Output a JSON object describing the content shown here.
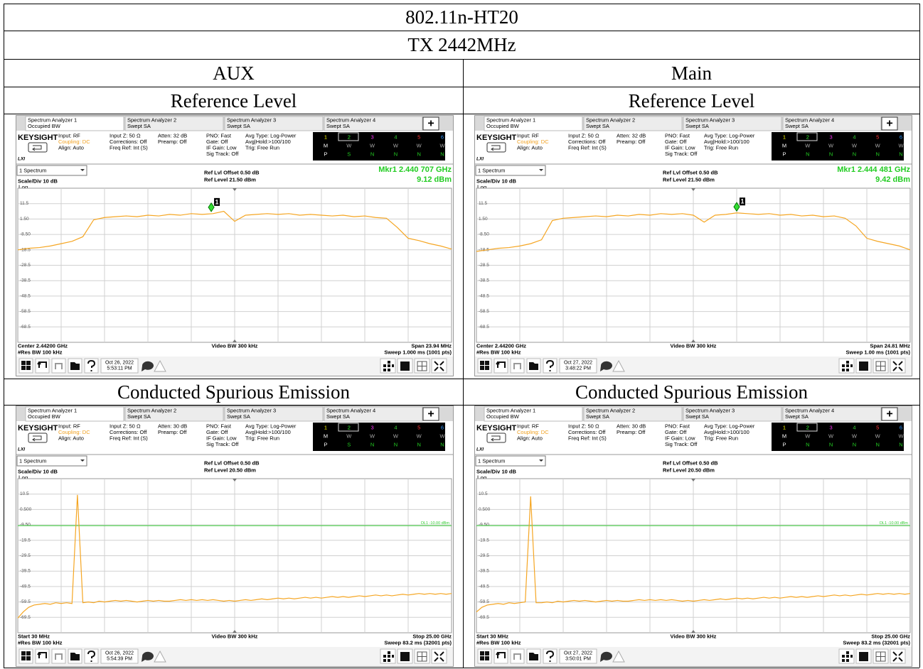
{
  "table": {
    "title": "802.11n-HT20",
    "subtitle": "TX 2442MHz",
    "columns": [
      "AUX",
      "Main"
    ],
    "sections": [
      {
        "titles": [
          "Reference Level",
          "Reference Level"
        ],
        "panels": [
          {
            "tabs": [
              [
                "Spectrum Analyzer 1",
                "Occupied BW"
              ],
              [
                "Spectrum Analyzer 2",
                "Swept SA"
              ],
              [
                "Spectrum Analyzer 3",
                "Swept SA"
              ],
              [
                "Spectrum Analyzer 4",
                "Swept SA"
              ]
            ],
            "plus": "+",
            "brand": "KEYSIGHT",
            "lxi": "LXI",
            "settings": [
              [
                "Input: RF",
                "Coupling: DC",
                "Align: Auto"
              ],
              [
                "Input Z: 50 Ω",
                "Corrections: Off",
                "Freq Ref: Int (S)"
              ],
              [
                "Atten: 32 dB",
                "Preamp: Off"
              ],
              [
                "PNO: Fast",
                "Gate: Off",
                "IF Gain: Low",
                "Sig Track: Off"
              ],
              [
                "Avg Type: Log-Power",
                "Avg|Hold:>100/100",
                "Trig: Free Run"
              ]
            ],
            "trace_table": [
              [
                "1",
                "2",
                "3",
                "4",
                "5",
                "6"
              ],
              [
                "M",
                "W",
                "W",
                "W",
                "W",
                "W"
              ],
              [
                "P",
                "S",
                "N",
                "N",
                "N",
                "N"
              ]
            ],
            "view": "1 Spectrum",
            "ref_offset": "Ref Lvl Offset 0.50 dB",
            "ref_level": "Ref Level 21.50 dBm",
            "marker_text": [
              "Mkr1  2.440 707 GHz",
              "9.12 dBm"
            ],
            "scale": "Scale/Div 10 dB",
            "log": "Log",
            "ytick_labels": [
              "11.5",
              "1.50",
              "-8.50",
              "-18.5",
              "-28.5",
              "-38.5",
              "-48.5",
              "-58.5",
              "-68.5"
            ],
            "ylim": [
              -78.5,
              21.5
            ],
            "xlim": [
              2430.03,
              2453.97
            ],
            "trace_color": "#f5a623",
            "trace": [
              -18.5,
              -17.5,
              -17,
              -16,
              -14.5,
              -13,
              -10,
              1.0,
              2.5,
              3.0,
              3.5,
              3.0,
              4.0,
              3.5,
              4.5,
              4.0,
              5.0,
              4.5,
              5.0,
              6.5,
              0.0,
              4.0,
              4.5,
              5.0,
              4.5,
              5.0,
              4.0,
              4.5,
              4.0,
              3.5,
              4.0,
              3.0,
              3.5,
              2.5,
              2.0,
              -4,
              -11,
              -12.5,
              -14.5,
              -16,
              -18
            ],
            "marker_point": {
              "x": 2440.707,
              "y": 9.12
            },
            "marker_label": "1",
            "bottom": [
              "Center 2.44200 GHz",
              "#Res BW 100 kHz",
              "Video BW 300 kHz",
              "Span 23.94 MHz",
              "Sweep 1.000 ms (1001 pts)"
            ],
            "date": "Oct 26, 2022",
            "time": "5:53:11 PM"
          },
          {
            "tabs": [
              [
                "Spectrum Analyzer 1",
                "Occupied BW"
              ],
              [
                "Spectrum Analyzer 2",
                "Swept SA"
              ],
              [
                "Spectrum Analyzer 3",
                "Swept SA"
              ],
              [
                "Spectrum Analyzer 4",
                "Swept SA"
              ]
            ],
            "plus": "+",
            "brand": "KEYSIGHT",
            "lxi": "LXI",
            "settings": [
              [
                "Input: RF",
                "Coupling: DC",
                "Align: Auto"
              ],
              [
                "Input Z: 50 Ω",
                "Corrections: Off",
                "Freq Ref: Int (S)"
              ],
              [
                "Atten: 32 dB",
                "Preamp: Off"
              ],
              [
                "PNO: Fast",
                "Gate: Off",
                "IF Gain: Low",
                "Sig Track: Off"
              ],
              [
                "Avg Type: Log-Power",
                "Avg|Hold:>100/100",
                "Trig: Free Run"
              ]
            ],
            "trace_table": [
              [
                "1",
                "2",
                "3",
                "4",
                "5",
                "6"
              ],
              [
                "M",
                "W",
                "W",
                "W",
                "W",
                "W"
              ],
              [
                "P",
                "N",
                "N",
                "N",
                "N",
                "N"
              ]
            ],
            "view": "1 Spectrum",
            "ref_offset": "Ref Lvl Offset 0.50 dB",
            "ref_level": "Ref Level 21.50 dBm",
            "marker_text": [
              "Mkr1  2.444 481 GHz",
              "9.42 dBm"
            ],
            "scale": "Scale/Div 10 dB",
            "log": "Log",
            "ytick_labels": [
              "11.5",
              "1.50",
              "-8.50",
              "-18.5",
              "-28.5",
              "-38.5",
              "-48.5",
              "-58.5",
              "-68.5"
            ],
            "ylim": [
              -78.5,
              21.5
            ],
            "xlim": [
              2429.595,
              2454.405
            ],
            "trace_color": "#f5a623",
            "trace": [
              -19.5,
              -18.5,
              -17.5,
              -17,
              -16,
              -14.5,
              -12,
              0.5,
              2.0,
              2.5,
              3.0,
              3.5,
              3.0,
              4.0,
              3.5,
              4.5,
              4.0,
              5.0,
              4.5,
              5.0,
              4.0,
              -0.5,
              4.0,
              4.5,
              5.5,
              5.0,
              4.5,
              5.0,
              4.0,
              4.5,
              3.5,
              4.0,
              3.0,
              3.5,
              2.0,
              -3,
              -11,
              -13,
              -14.5,
              -16,
              -18.5
            ],
            "marker_point": {
              "x": 2444.481,
              "y": 9.42
            },
            "marker_label": "1",
            "bottom": [
              "Center 2.44200 GHz",
              "#Res BW 100 kHz",
              "Video BW 300 kHz",
              "Span 24.81 MHz",
              "Sweep 1.00 ms (1001 pts)"
            ],
            "date": "Oct 27, 2022",
            "time": "3:48:22 PM"
          }
        ]
      },
      {
        "titles": [
          "Conducted Spurious Emission",
          "Conducted Spurious Emission"
        ],
        "panels": [
          {
            "tabs": [
              [
                "Spectrum Analyzer 1",
                "Occupied BW"
              ],
              [
                "Spectrum Analyzer 2",
                "Swept SA"
              ],
              [
                "Spectrum Analyzer 3",
                "Swept SA"
              ],
              [
                "Spectrum Analyzer 4",
                "Swept SA"
              ]
            ],
            "plus": "+",
            "brand": "KEYSIGHT",
            "lxi": "LXI",
            "settings": [
              [
                "Input: RF",
                "Coupling: DC",
                "Align: Auto"
              ],
              [
                "Input Z: 50 Ω",
                "Corrections: Off",
                "Freq Ref: Int (S)"
              ],
              [
                "Atten: 30 dB",
                "Preamp: Off"
              ],
              [
                "PNO: Fast",
                "Gate: Off",
                "IF Gain: Low",
                "Sig Track: Off"
              ],
              [
                "Avg Type: Log-Power",
                "Avg|Hold:>100/100",
                "Trig: Free Run"
              ]
            ],
            "trace_table": [
              [
                "1",
                "2",
                "3",
                "4",
                "5",
                "6"
              ],
              [
                "M",
                "W",
                "W",
                "W",
                "W",
                "W"
              ],
              [
                "P",
                "S",
                "N",
                "N",
                "N",
                "N"
              ]
            ],
            "view": "1 Spectrum",
            "ref_offset": "Ref Lvl Offset 0.50 dB",
            "ref_level": "Ref Level 20.50 dBm",
            "scale": "Scale/Div 10 dB",
            "log": "Log",
            "ytick_labels": [
              "10.5",
              "0.500",
              "-9.50",
              "-19.5",
              "-29.5",
              "-39.5",
              "-49.5",
              "-59.5",
              "-69.5"
            ],
            "ylim": [
              -79.5,
              20.5
            ],
            "trace_color": "#f5a623",
            "trace": [
              -70,
              -66,
              -63,
              -61.5,
              -61,
              -60.5,
              -61,
              -60,
              -60.5,
              -60,
              -60.5,
              10,
              -60,
              -59.5,
              -60,
              -59,
              -59.5,
              -59,
              -58.5,
              -59,
              -58.5,
              -59,
              -59.5,
              -59,
              -58.5,
              -59,
              -58.5,
              -59,
              -59,
              -58.5,
              -58,
              -58.5,
              -58,
              -58.5,
              -58,
              -58.5,
              -58,
              -58.5,
              -59,
              -58.5,
              -59,
              -58.5,
              -58,
              -58.5,
              -58,
              -57.5,
              -58,
              -57.5,
              -57,
              -57.5,
              -57,
              -57.5,
              -57,
              -56.5,
              -57,
              -56.5,
              -57,
              -56.5,
              -56,
              -56.5,
              -56,
              -56.5,
              -56,
              -55.5,
              -56,
              -55.5,
              -55,
              -55.5,
              -55,
              -55.5,
              -55,
              -54.5,
              -55,
              -54.5,
              -54,
              -54.5,
              -54,
              -54.5,
              -54,
              -54.5,
              -54
            ],
            "display_line": {
              "value": -10,
              "label": "DL1 -10.00 dBm"
            },
            "bottom": [
              "Start 30 MHz",
              "#Res BW 100 kHz",
              "Video BW 300 kHz",
              "Stop 25.00 GHz",
              "Sweep 83.2 ms (32001 pts)"
            ],
            "date": "Oct 26, 2022",
            "time": "5:54:39 PM"
          },
          {
            "tabs": [
              [
                "Spectrum Analyzer 1",
                "Occupied BW"
              ],
              [
                "Spectrum Analyzer 2",
                "Swept SA"
              ],
              [
                "Spectrum Analyzer 3",
                "Swept SA"
              ],
              [
                "Spectrum Analyzer 4",
                "Swept SA"
              ]
            ],
            "plus": "+",
            "brand": "KEYSIGHT",
            "lxi": "LXI",
            "settings": [
              [
                "Input: RF",
                "Coupling: DC",
                "Align: Auto"
              ],
              [
                "Input Z: 50 Ω",
                "Corrections: Off",
                "Freq Ref: Int (S)"
              ],
              [
                "Atten: 30 dB",
                "Preamp: Off"
              ],
              [
                "PNO: Fast",
                "Gate: Off",
                "IF Gain: Low",
                "Sig Track: Off"
              ],
              [
                "Avg Type: Log-Power",
                "Avg|Hold:>100/100",
                "Trig: Free Run"
              ]
            ],
            "trace_table": [
              [
                "1",
                "2",
                "3",
                "4",
                "5",
                "6"
              ],
              [
                "M",
                "W",
                "W",
                "W",
                "W",
                "W"
              ],
              [
                "P",
                "N",
                "N",
                "N",
                "N",
                "N"
              ]
            ],
            "view": "1 Spectrum",
            "ref_offset": "Ref Lvl Offset 0.50 dB",
            "ref_level": "Ref Level 20.50 dBm",
            "scale": "Scale/Div 10 dB",
            "log": "Log",
            "ytick_labels": [
              "10.5",
              "0.500",
              "-9.50",
              "-19.5",
              "-29.5",
              "-39.5",
              "-49.5",
              "-59.5",
              "-69.5"
            ],
            "ylim": [
              -79.5,
              20.5
            ],
            "trace_color": "#f5a623",
            "trace": [
              -66,
              -63,
              -61.5,
              -61,
              -60.5,
              -61,
              -60,
              -60.5,
              -60,
              -59.5,
              9,
              -60,
              -60,
              -59.5,
              -60,
              -59,
              -59.5,
              -59,
              -58.5,
              -59,
              -58.5,
              -59,
              -59.5,
              -59,
              -58.5,
              -59,
              -58.5,
              -59,
              -59,
              -58.5,
              -58,
              -58.5,
              -58,
              -58.5,
              -58,
              -58.5,
              -58,
              -58.5,
              -59,
              -58.5,
              -59,
              -58.5,
              -58,
              -58.5,
              -58,
              -57.5,
              -58,
              -57.5,
              -57,
              -57.5,
              -57,
              -57.5,
              -57,
              -56.5,
              -57,
              -56.5,
              -57,
              -56.5,
              -56,
              -56.5,
              -56,
              -56.5,
              -56,
              -55.5,
              -56,
              -55.5,
              -55,
              -55.5,
              -55,
              -55.5,
              -55,
              -54.5,
              -55,
              -54.5,
              -54,
              -54.5,
              -54,
              -54.5,
              -54,
              -54.5,
              -54
            ],
            "display_line": {
              "value": -10,
              "label": "DL1 -10.00 dBm"
            },
            "bottom": [
              "Start 30 MHz",
              "#Res BW 100 kHz",
              "Video BW 300 kHz",
              "Stop 25.00 GHz",
              "Sweep 83.2 ms (32001 pts)"
            ],
            "date": "Oct 27, 2022",
            "time": "3:50:01 PM"
          }
        ]
      }
    ]
  }
}
